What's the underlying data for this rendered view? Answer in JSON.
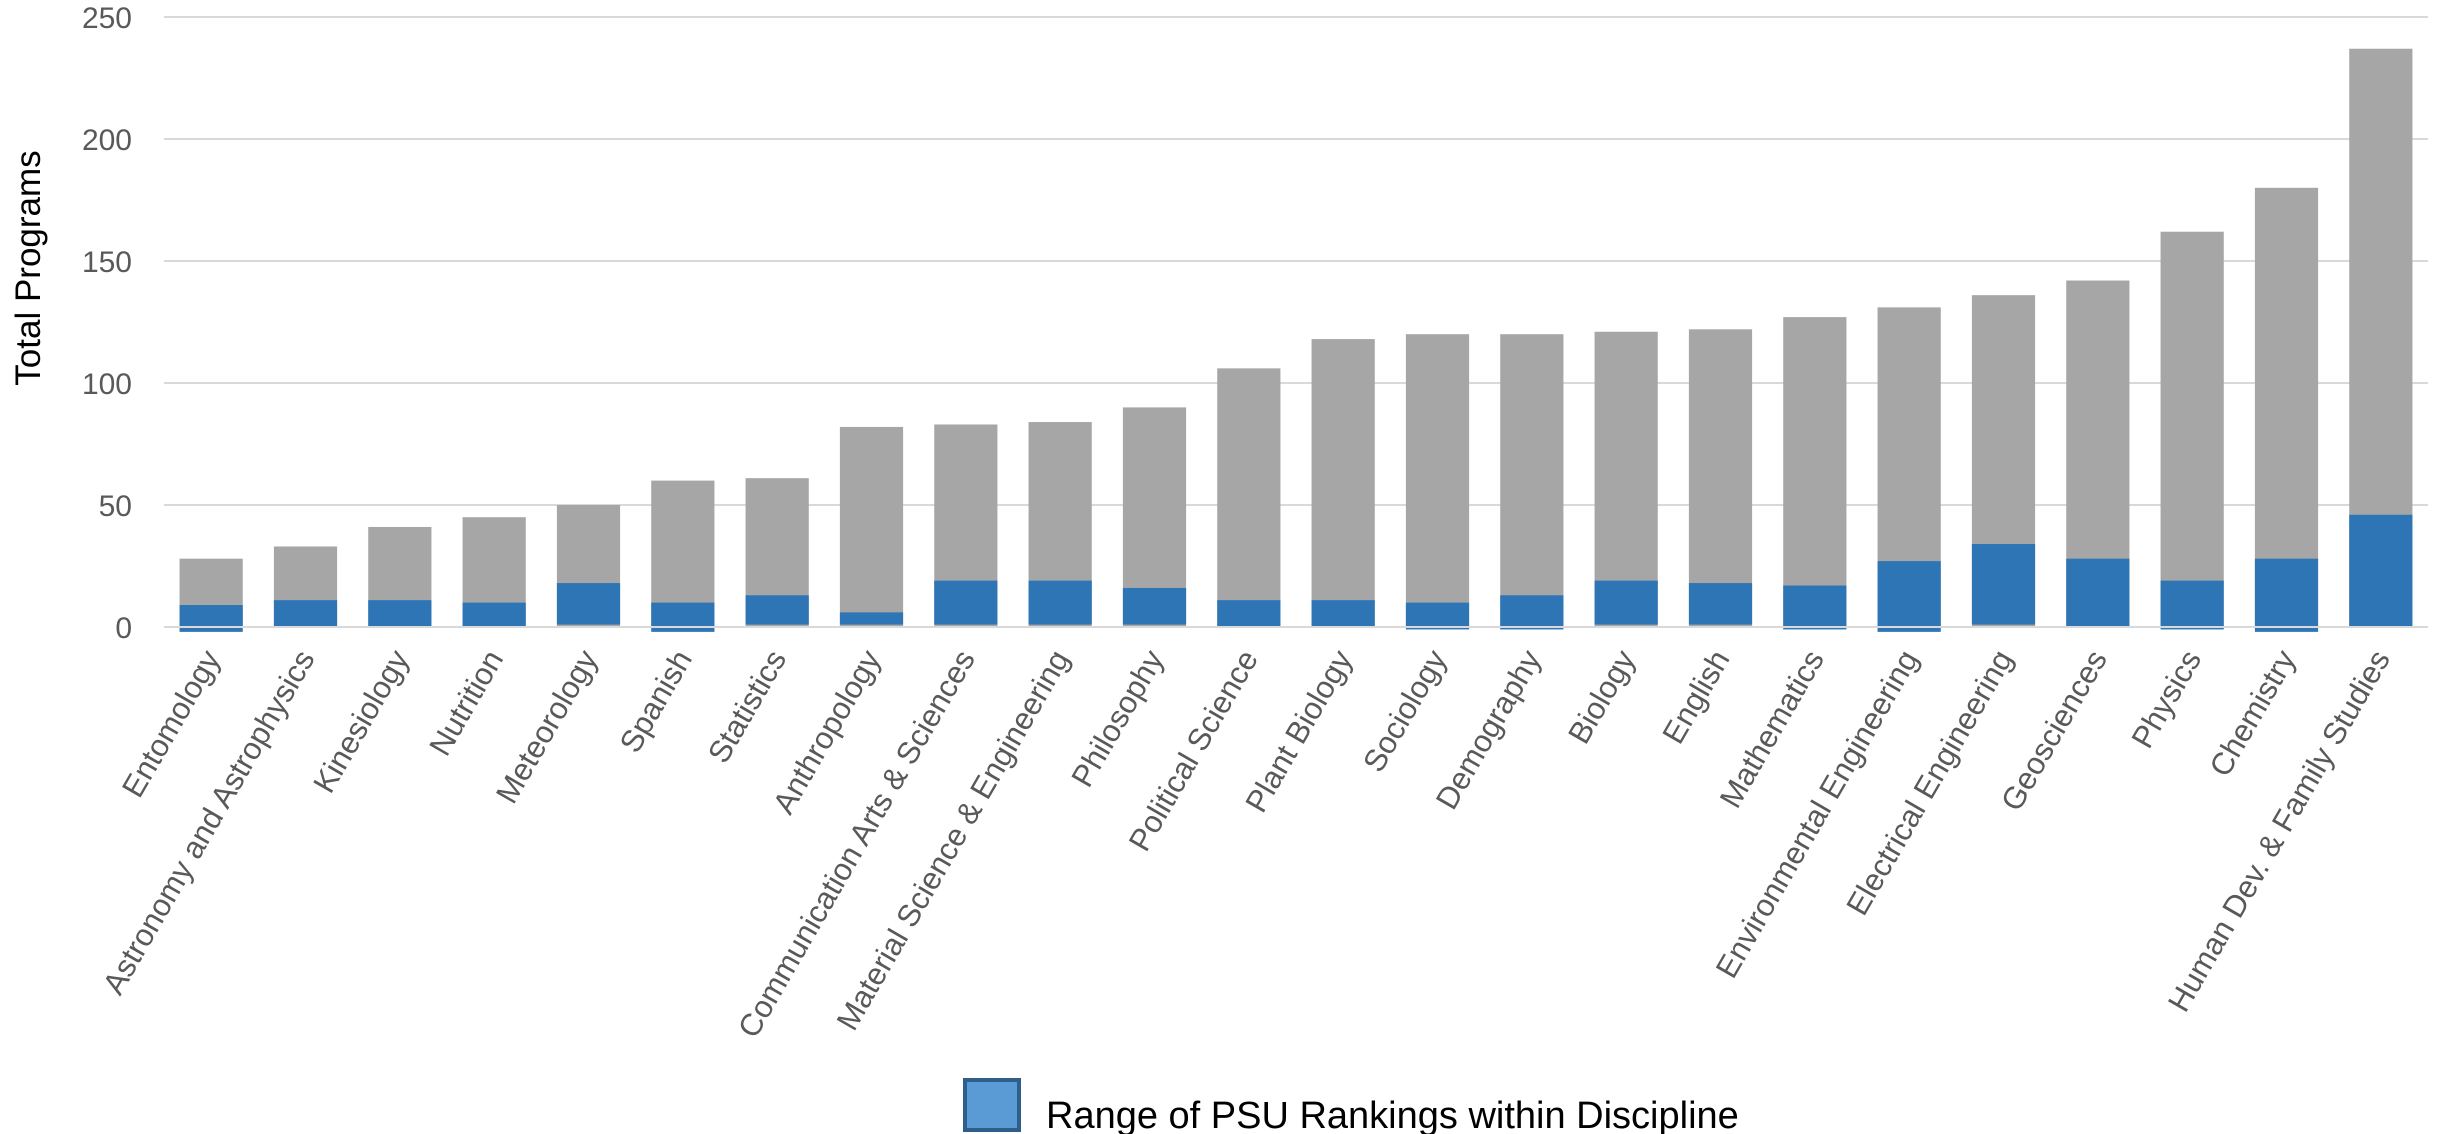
{
  "chart_data": {
    "type": "bar",
    "title": "",
    "xlabel": "",
    "ylabel": "Total Programs",
    "ylim": [
      0,
      250
    ],
    "yticks": [
      0,
      50,
      100,
      150,
      200,
      250
    ],
    "grid": true,
    "legend_position": "bottom",
    "categories": [
      "Entomology",
      "Astronomy and Astrophysics",
      "Kinesiology",
      "Nutrition",
      "Meteorology",
      "Spanish",
      "Statistics",
      "Anthropology",
      "Communication Arts & Sciences",
      "Material Science & Engineering",
      "Philosophy",
      "Political Science",
      "Plant Biology",
      "Sociology",
      "Demography",
      "Biology",
      "English",
      "Mathematics",
      "Environmental Engineering",
      "Electrical Engineering",
      "Geosciences",
      "Physics",
      "Chemistry",
      "Human Dev. & Family Studies"
    ],
    "total_programs": [
      28,
      33,
      41,
      45,
      50,
      60,
      61,
      82,
      83,
      84,
      90,
      106,
      118,
      120,
      120,
      121,
      122,
      127,
      131,
      136,
      142,
      162,
      180,
      237
    ],
    "psu_rank_range": [
      [
        -2,
        9
      ],
      [
        0,
        11
      ],
      [
        0,
        11
      ],
      [
        0,
        10
      ],
      [
        1,
        18
      ],
      [
        -2,
        10
      ],
      [
        1,
        13
      ],
      [
        1,
        6
      ],
      [
        1,
        19
      ],
      [
        1,
        19
      ],
      [
        1,
        16
      ],
      [
        0,
        11
      ],
      [
        0,
        11
      ],
      [
        -1,
        10
      ],
      [
        -1,
        13
      ],
      [
        1,
        19
      ],
      [
        1,
        18
      ],
      [
        -1,
        17
      ],
      [
        -2,
        27
      ],
      [
        1,
        34
      ],
      [
        0,
        28
      ],
      [
        -1,
        19
      ],
      [
        -2,
        28
      ],
      [
        0,
        46
      ]
    ],
    "series": [
      {
        "name": "",
        "color": "#a6a6a6"
      },
      {
        "name": "Range of PSU Rankings within Discipline",
        "color": "#2e75b6"
      }
    ]
  },
  "colors": {
    "total_bar": "#a6a6a6",
    "range_bar": "#2e75b6",
    "legend_swatch": "#5b9bd5",
    "legend_border": "#2e5f8a",
    "grid": "#d9d9d9",
    "tick_text": "#595959"
  }
}
